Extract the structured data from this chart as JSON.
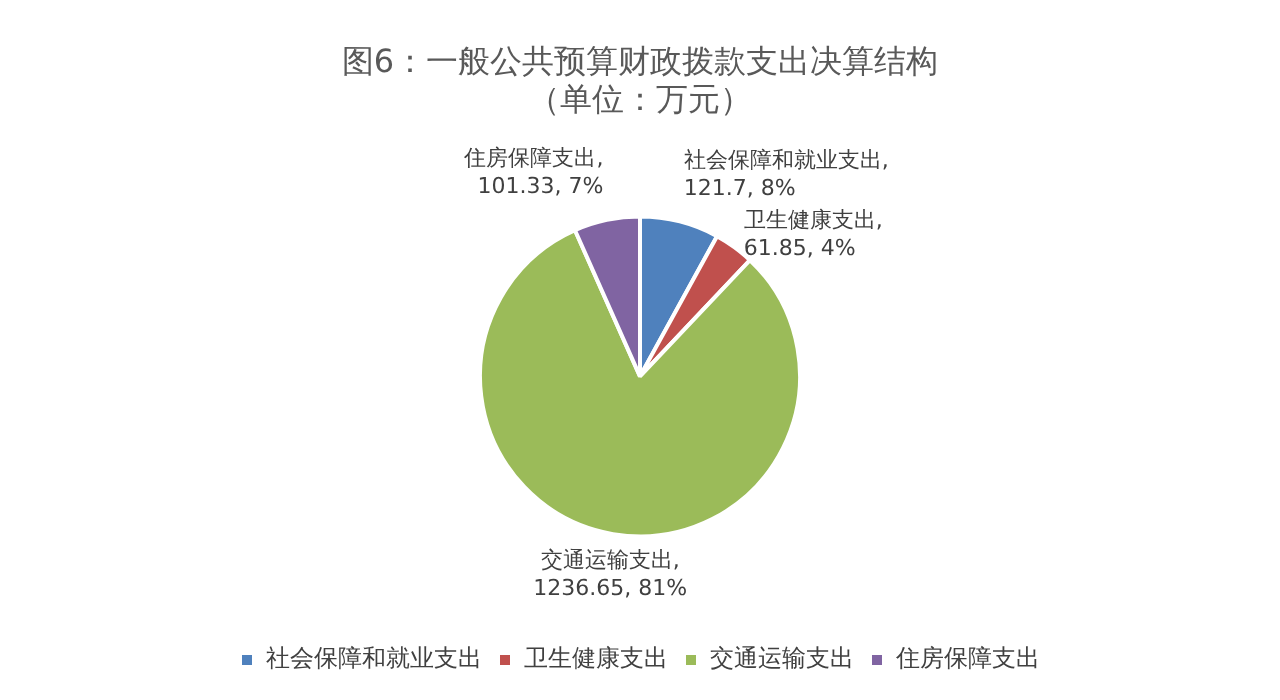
{
  "chart_data": {
    "type": "pie",
    "title": [
      "图6：一般公共预算财政拨款支出决算结构",
      "（单位：万元）"
    ],
    "categories": [
      "社会保障和就业支出",
      "卫生健康支出",
      "交通运输支出",
      "住房保障支出"
    ],
    "values": [
      121.7,
      61.85,
      1236.65,
      101.33
    ],
    "colors": [
      "#4f81bd",
      "#c0504d",
      "#9bbb59",
      "#8064a2"
    ],
    "value_labels": [
      "社会保障和就业支出, 121.7, 8%",
      "卫生健康支出, 61.85, 4%",
      "交通运输支出, 1236.65, 81%",
      "住房保障支出, 101.33, 7%"
    ],
    "legend": "bottom"
  }
}
